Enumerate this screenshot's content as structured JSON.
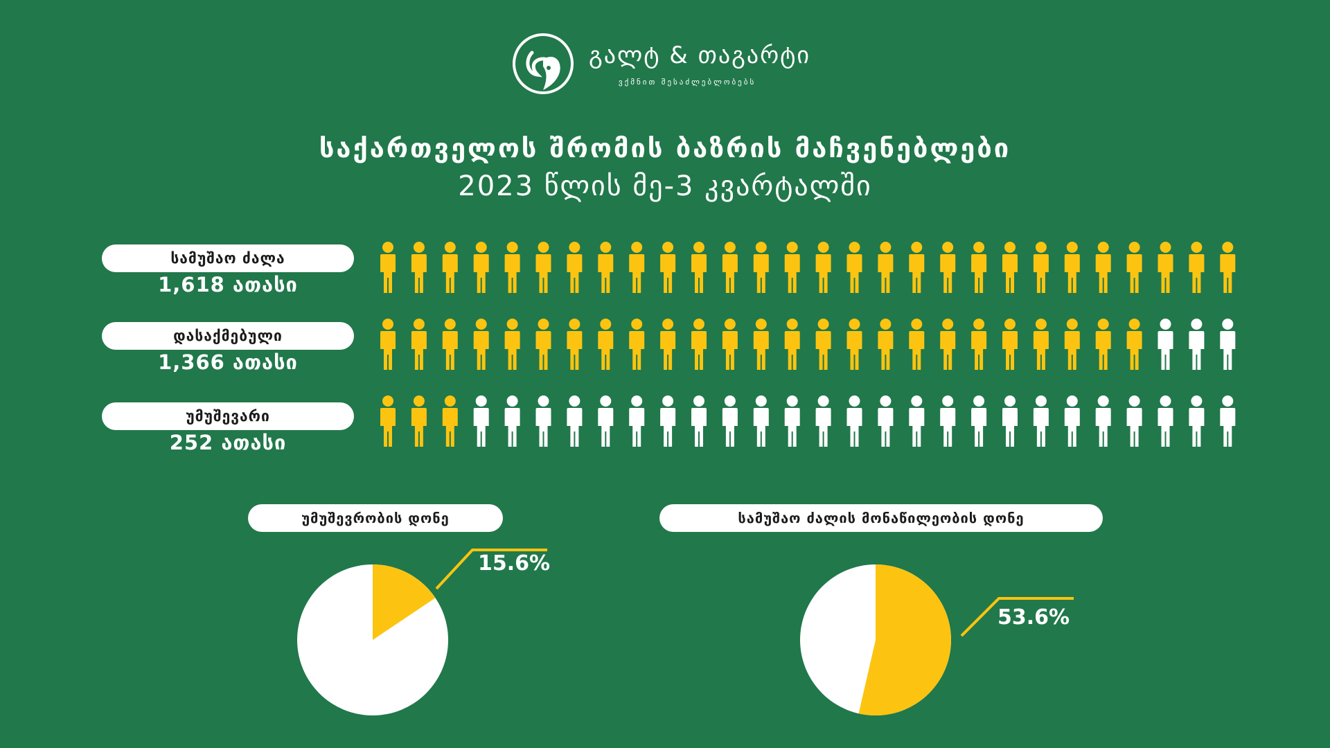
{
  "brand": {
    "name": "გალტ & თაგარტი",
    "tagline": "ვქმნით შესაძლებლობებს",
    "logo_icon": "ram-head-icon"
  },
  "header": {
    "title": "საქართველოს შრომის ბაზრის მაჩვენებლები",
    "subtitle": "2023 წლის მე-3 კვარტალში"
  },
  "colors": {
    "background": "#21784b",
    "accent": "#fcc411",
    "neutral": "#ffffff"
  },
  "chart_data": [
    {
      "type": "pictogram",
      "icon": "person-icon",
      "icons_per_row": 28,
      "rows": [
        {
          "label": "სამუშაო ძალა",
          "value_text": "1,618 ათასი",
          "value": 1618,
          "filled": 28
        },
        {
          "label": "დასაქმებული",
          "value_text": "1,366 ათასი",
          "value": 1366,
          "filled": 25
        },
        {
          "label": "უმუშევარი",
          "value_text": "252 ათასი",
          "value": 252,
          "filled": 3
        }
      ]
    },
    {
      "type": "pie",
      "title": "უმუშევრობის დონე",
      "value": 15.6,
      "label": "15.6%"
    },
    {
      "type": "pie",
      "title": "სამუშაო ძალის მონაწილეობის დონე",
      "value": 53.6,
      "label": "53.6%"
    }
  ]
}
